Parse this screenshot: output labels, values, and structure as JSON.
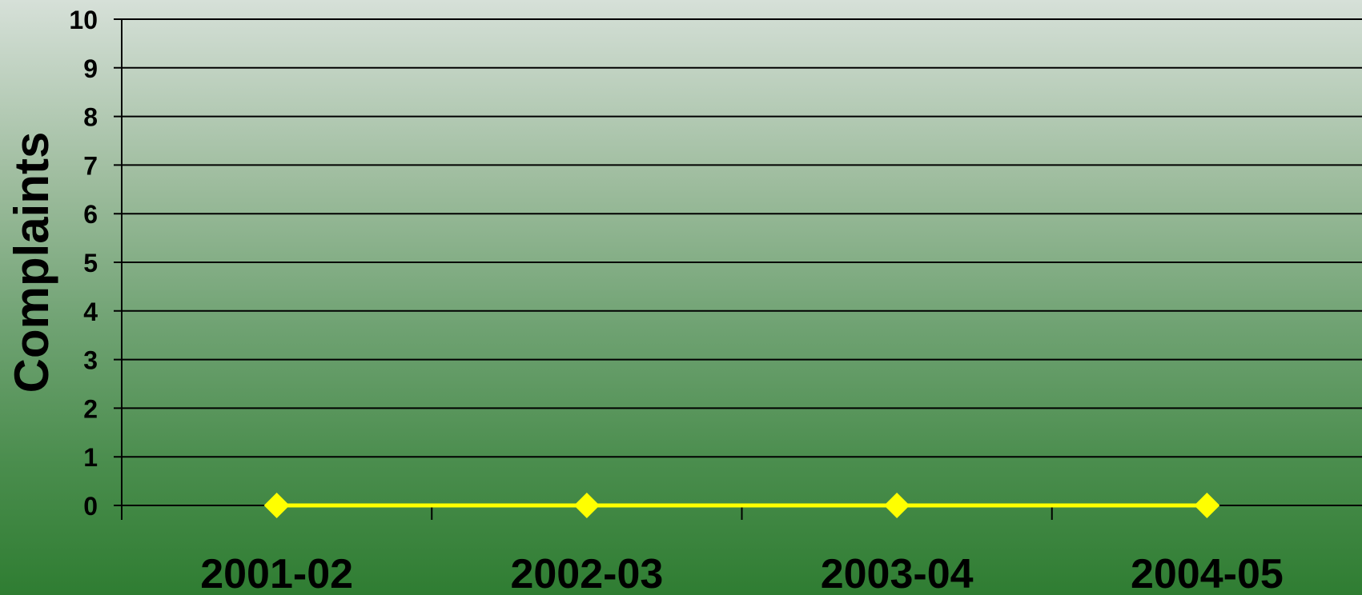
{
  "chart_data": {
    "type": "line",
    "categories": [
      "2001-02",
      "2002-03",
      "2003-04",
      "2004-05"
    ],
    "series": [
      {
        "values": [
          0,
          0,
          0,
          0
        ],
        "color": "#ffff00",
        "marker": "diamond"
      }
    ],
    "xlabel": "",
    "ylabel": "Complaints",
    "ylim": [
      0,
      10
    ],
    "yticks": [
      "0",
      "1",
      "2",
      "3",
      "4",
      "5",
      "6",
      "7",
      "8",
      "9",
      "10"
    ],
    "grid": true,
    "gridline_color": "#000000"
  }
}
